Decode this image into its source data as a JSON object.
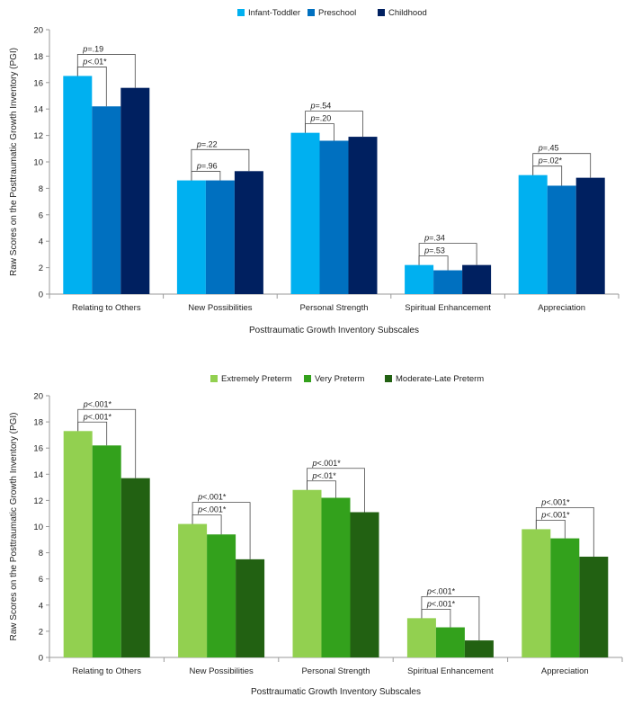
{
  "chart_data": [
    {
      "type": "bar",
      "categories": [
        "Relating to Others",
        "New Possibilities",
        "Personal Strength",
        "Spiritual Enhancement",
        "Appreciation"
      ],
      "series": [
        {
          "name": "Infant-Toddler",
          "color": "#00b0f0",
          "values": [
            16.5,
            8.6,
            12.2,
            2.2,
            9.0
          ]
        },
        {
          "name": "Preschool",
          "color": "#0070c0",
          "values": [
            14.2,
            8.6,
            11.6,
            1.8,
            8.2
          ]
        },
        {
          "name": "Childhood",
          "color": "#002060",
          "values": [
            15.6,
            9.3,
            11.9,
            2.2,
            8.8
          ]
        }
      ],
      "xlabel": "Posttraumatic Growth Inventory Subscales",
      "ylabel": "Raw Scores on the Posttraumatic Growth Inventory (PGI)",
      "ylim": [
        0,
        20
      ],
      "yticks": [
        "0",
        "2",
        "4",
        "6",
        "8",
        "10",
        "12",
        "14",
        "16",
        "18",
        "20"
      ],
      "legend_position": "top",
      "grid": false,
      "annotations": [
        [
          {
            "p": "p",
            "rest": "<.01*",
            "to": 1
          },
          {
            "p": "p",
            "rest": "=.19",
            "to": 2
          }
        ],
        [
          {
            "p": "p",
            "rest": "=.96",
            "to": 1
          },
          {
            "p": "p",
            "rest": "=.22",
            "to": 2
          }
        ],
        [
          {
            "p": "p",
            "rest": "=.20",
            "to": 1
          },
          {
            "p": "p",
            "rest": "=.54",
            "to": 2
          }
        ],
        [
          {
            "p": "p",
            "rest": "=.53",
            "to": 1
          },
          {
            "p": "p",
            "rest": "=.34",
            "to": 2
          }
        ],
        [
          {
            "p": "p",
            "rest": "=.02*",
            "to": 1
          },
          {
            "p": "p",
            "rest": "=.45",
            "to": 2
          }
        ]
      ]
    },
    {
      "type": "bar",
      "categories": [
        "Relating to Others",
        "New Possibilities",
        "Personal Strength",
        "Spiritual Enhancement",
        "Appreciation"
      ],
      "series": [
        {
          "name": "Extremely Preterm",
          "color": "#92d050",
          "values": [
            17.3,
            10.2,
            12.8,
            3.0,
            9.8
          ]
        },
        {
          "name": "Very Preterm",
          "color": "#33a11c",
          "values": [
            16.2,
            9.4,
            12.2,
            2.3,
            9.1
          ]
        },
        {
          "name": "Moderate-Late Preterm",
          "color": "#226112",
          "values": [
            13.7,
            7.5,
            11.1,
            1.3,
            7.7
          ]
        }
      ],
      "xlabel": "Posttraumatic Growth Inventory Subscales",
      "ylabel": "Raw Scores on the Posttraumatic Growth Inventory (PGI)",
      "ylim": [
        0,
        20
      ],
      "yticks": [
        "0",
        "2",
        "4",
        "6",
        "8",
        "10",
        "12",
        "14",
        "16",
        "18",
        "20"
      ],
      "legend_position": "top",
      "grid": false,
      "annotations": [
        [
          {
            "p": "p",
            "rest": "<.001*",
            "to": 1
          },
          {
            "p": "p",
            "rest": "<.001*",
            "to": 2
          }
        ],
        [
          {
            "p": "p",
            "rest": "<.001*",
            "to": 1
          },
          {
            "p": "p",
            "rest": "<.001*",
            "to": 2
          }
        ],
        [
          {
            "p": "p",
            "rest": "<.01*",
            "to": 1
          },
          {
            "p": "p",
            "rest": "<.001*",
            "to": 2
          }
        ],
        [
          {
            "p": "p",
            "rest": "<.001*",
            "to": 1
          },
          {
            "p": "p",
            "rest": "<.001*",
            "to": 2
          }
        ],
        [
          {
            "p": "p",
            "rest": "<.001*",
            "to": 1
          },
          {
            "p": "p",
            "rest": "<.001*",
            "to": 2
          }
        ]
      ]
    }
  ]
}
